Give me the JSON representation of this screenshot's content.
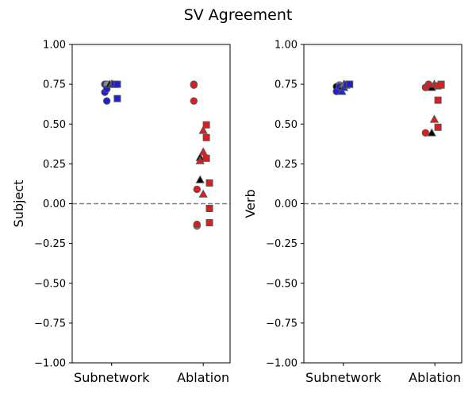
{
  "figure": {
    "title": "SV Agreement"
  },
  "colors": {
    "subnetwork": "#1f1fd9",
    "ablation": "#e41a1c",
    "black_marker": "#000000",
    "grey_marker": "#8c8c8c",
    "marker_edge": "#555555",
    "reference_line": "#808080"
  },
  "chart_data": [
    {
      "type": "scatter",
      "title": "",
      "ylabel": "Subject",
      "xlabel": "",
      "categories": [
        "Subnetwork",
        "Ablation"
      ],
      "ylim": [
        -1.0,
        1.0
      ],
      "yticks": [
        -1.0,
        -0.75,
        -0.5,
        -0.25,
        0.0,
        0.25,
        0.5,
        0.75,
        1.0
      ],
      "ytick_labels": [
        "−1.00",
        "−0.75",
        "−0.50",
        "−0.25",
        "0.00",
        "0.25",
        "0.50",
        "0.75",
        "1.00"
      ],
      "grid": false,
      "reference_line": {
        "y": 0,
        "style": "dashed"
      },
      "points": [
        {
          "cat": 0,
          "offset": -0.24,
          "y": 0.75,
          "marker": "circle",
          "color": "subnetwork"
        },
        {
          "cat": 0,
          "offset": -0.24,
          "y": 0.7,
          "marker": "circle",
          "color": "subnetwork"
        },
        {
          "cat": 0,
          "offset": -0.17,
          "y": 0.75,
          "marker": "circle",
          "color": "grey"
        },
        {
          "cat": 0,
          "offset": -0.17,
          "y": 0.72,
          "marker": "circle",
          "color": "subnetwork"
        },
        {
          "cat": 0,
          "offset": -0.17,
          "y": 0.645,
          "marker": "circle",
          "color": "subnetwork"
        },
        {
          "cat": 0,
          "offset": -0.07,
          "y": 0.75,
          "marker": "triangle",
          "color": "black"
        },
        {
          "cat": 0,
          "offset": 0.0,
          "y": 0.75,
          "marker": "triangle",
          "color": "grey"
        },
        {
          "cat": 0,
          "offset": 0.03,
          "y": 0.75,
          "marker": "triangle",
          "color": "subnetwork"
        },
        {
          "cat": 0,
          "offset": 0.1,
          "y": 0.75,
          "marker": "square",
          "color": "black"
        },
        {
          "cat": 0,
          "offset": 0.1,
          "y": 0.75,
          "marker": "square",
          "color": "subnetwork"
        },
        {
          "cat": 0,
          "offset": 0.2,
          "y": 0.75,
          "marker": "square",
          "color": "subnetwork"
        },
        {
          "cat": 0,
          "offset": 0.2,
          "y": 0.66,
          "marker": "square",
          "color": "subnetwork"
        },
        {
          "cat": 1,
          "offset": -0.33,
          "y": 0.75,
          "marker": "circle",
          "color": "black"
        },
        {
          "cat": 1,
          "offset": -0.33,
          "y": 0.745,
          "marker": "circle",
          "color": "ablation"
        },
        {
          "cat": 1,
          "offset": -0.33,
          "y": 0.645,
          "marker": "circle",
          "color": "ablation"
        },
        {
          "cat": 1,
          "offset": -0.22,
          "y": 0.09,
          "marker": "circle",
          "color": "ablation"
        },
        {
          "cat": 1,
          "offset": -0.22,
          "y": -0.14,
          "marker": "circle",
          "color": "grey"
        },
        {
          "cat": 1,
          "offset": -0.22,
          "y": -0.13,
          "marker": "circle",
          "color": "ablation"
        },
        {
          "cat": 1,
          "offset": -0.11,
          "y": 0.29,
          "marker": "triangle",
          "color": "black"
        },
        {
          "cat": 1,
          "offset": -0.11,
          "y": 0.27,
          "marker": "triangle",
          "color": "ablation"
        },
        {
          "cat": 1,
          "offset": -0.11,
          "y": 0.15,
          "marker": "triangle",
          "color": "black"
        },
        {
          "cat": 1,
          "offset": 0.0,
          "y": 0.46,
          "marker": "triangle",
          "color": "ablation"
        },
        {
          "cat": 1,
          "offset": 0.0,
          "y": 0.325,
          "marker": "triangle",
          "color": "ablation"
        },
        {
          "cat": 1,
          "offset": 0.0,
          "y": 0.06,
          "marker": "triangle",
          "color": "ablation"
        },
        {
          "cat": 1,
          "offset": 0.11,
          "y": 0.495,
          "marker": "square",
          "color": "ablation"
        },
        {
          "cat": 1,
          "offset": 0.11,
          "y": 0.415,
          "marker": "square",
          "color": "ablation"
        },
        {
          "cat": 1,
          "offset": 0.11,
          "y": 0.285,
          "marker": "square",
          "color": "ablation"
        },
        {
          "cat": 1,
          "offset": 0.22,
          "y": 0.13,
          "marker": "square",
          "color": "ablation"
        },
        {
          "cat": 1,
          "offset": 0.22,
          "y": -0.03,
          "marker": "square",
          "color": "ablation"
        },
        {
          "cat": 1,
          "offset": 0.22,
          "y": -0.12,
          "marker": "square",
          "color": "ablation"
        }
      ]
    },
    {
      "type": "scatter",
      "title": "",
      "ylabel": "Verb",
      "xlabel": "",
      "categories": [
        "Subnetwork",
        "Ablation"
      ],
      "ylim": [
        -1.0,
        1.0
      ],
      "yticks": [
        -1.0,
        -0.75,
        -0.5,
        -0.25,
        0.0,
        0.25,
        0.5,
        0.75,
        1.0
      ],
      "ytick_labels": [
        "−1.00",
        "−0.75",
        "−0.50",
        "−0.25",
        "0.00",
        "0.25",
        "0.50",
        "0.75",
        "1.00"
      ],
      "grid": false,
      "reference_line": {
        "y": 0,
        "style": "dashed"
      },
      "points": [
        {
          "cat": 0,
          "offset": -0.24,
          "y": 0.735,
          "marker": "circle",
          "color": "black"
        },
        {
          "cat": 0,
          "offset": -0.24,
          "y": 0.705,
          "marker": "circle",
          "color": "subnetwork"
        },
        {
          "cat": 0,
          "offset": -0.14,
          "y": 0.745,
          "marker": "circle",
          "color": "grey"
        },
        {
          "cat": 0,
          "offset": -0.14,
          "y": 0.735,
          "marker": "circle",
          "color": "subnetwork"
        },
        {
          "cat": 0,
          "offset": -0.05,
          "y": 0.735,
          "marker": "triangle",
          "color": "black"
        },
        {
          "cat": 0,
          "offset": -0.05,
          "y": 0.705,
          "marker": "triangle",
          "color": "subnetwork"
        },
        {
          "cat": 0,
          "offset": 0.02,
          "y": 0.75,
          "marker": "triangle",
          "color": "grey"
        },
        {
          "cat": 0,
          "offset": 0.02,
          "y": 0.73,
          "marker": "triangle",
          "color": "subnetwork"
        },
        {
          "cat": 0,
          "offset": 0.12,
          "y": 0.75,
          "marker": "square",
          "color": "black"
        },
        {
          "cat": 0,
          "offset": 0.12,
          "y": 0.745,
          "marker": "square",
          "color": "subnetwork"
        },
        {
          "cat": 0,
          "offset": 0.22,
          "y": 0.75,
          "marker": "square",
          "color": "grey"
        },
        {
          "cat": 0,
          "offset": 0.22,
          "y": 0.75,
          "marker": "square",
          "color": "subnetwork"
        },
        {
          "cat": 1,
          "offset": -0.33,
          "y": 0.73,
          "marker": "circle",
          "color": "ablation"
        },
        {
          "cat": 1,
          "offset": -0.22,
          "y": 0.75,
          "marker": "circle",
          "color": "grey"
        },
        {
          "cat": 1,
          "offset": -0.22,
          "y": 0.745,
          "marker": "circle",
          "color": "ablation"
        },
        {
          "cat": 1,
          "offset": -0.33,
          "y": 0.445,
          "marker": "circle",
          "color": "ablation"
        },
        {
          "cat": 1,
          "offset": -0.11,
          "y": 0.73,
          "marker": "triangle",
          "color": "black"
        },
        {
          "cat": 1,
          "offset": -0.11,
          "y": 0.445,
          "marker": "triangle",
          "color": "black"
        },
        {
          "cat": 1,
          "offset": -0.02,
          "y": 0.75,
          "marker": "triangle",
          "color": "ablation"
        },
        {
          "cat": 1,
          "offset": -0.02,
          "y": 0.53,
          "marker": "triangle",
          "color": "ablation"
        },
        {
          "cat": 1,
          "offset": 0.11,
          "y": 0.74,
          "marker": "square",
          "color": "ablation"
        },
        {
          "cat": 1,
          "offset": 0.11,
          "y": 0.65,
          "marker": "square",
          "color": "ablation"
        },
        {
          "cat": 1,
          "offset": 0.11,
          "y": 0.48,
          "marker": "square",
          "color": "ablation"
        },
        {
          "cat": 1,
          "offset": 0.22,
          "y": 0.75,
          "marker": "square",
          "color": "grey"
        },
        {
          "cat": 1,
          "offset": 0.22,
          "y": 0.745,
          "marker": "square",
          "color": "ablation"
        }
      ]
    }
  ]
}
